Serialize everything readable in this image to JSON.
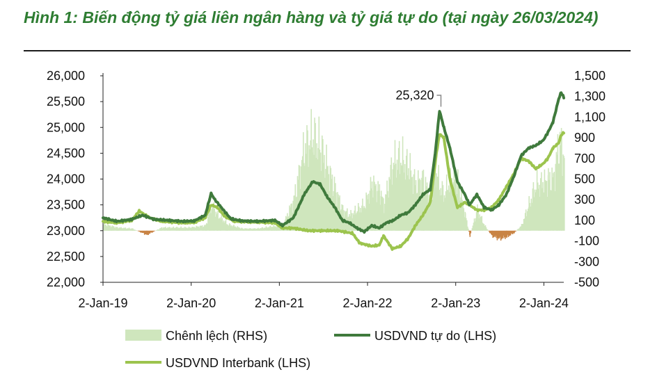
{
  "title": "Hình 1: Biến động tỷ giá liên ngân hàng và tỷ giá tự do (tại ngày 26/03/2024)",
  "colors": {
    "free": "#3f7a3c",
    "interbank": "#9cc44e",
    "spread_pos": "#cfe6bd",
    "spread_neg": "#c98445",
    "title": "#2e7d32"
  },
  "chart_data": {
    "type": "line",
    "title": "Hình 1: Biến động tỷ giá liên ngân hàng và tỷ giá tự do (tại ngày 26/03/2024)",
    "x_ticks": [
      "2-Jan-19",
      "2-Jan-20",
      "2-Jan-21",
      "2-Jan-22",
      "2-Jan-23",
      "2-Jan-24"
    ],
    "xlim": [
      "2019-01-02",
      "2024-03-26"
    ],
    "ylim_left": [
      22000,
      26000
    ],
    "ylim_right": [
      -500,
      1500
    ],
    "left_ticks": [
      "26,000",
      "25,500",
      "25,000",
      "24,500",
      "24,000",
      "23,500",
      "23,000",
      "22,500",
      "22,000"
    ],
    "right_ticks": [
      "1,500",
      "1,300",
      "1,100",
      "900",
      "700",
      "500",
      "300",
      "100",
      "-100",
      "-300",
      "-500"
    ],
    "annotation": {
      "label": "25,320",
      "date": "2022-10-28",
      "value": 25320
    },
    "legend": [
      "Chênh lệch (RHS)",
      "USDVND tự do (LHS)",
      "USDVND Interbank (LHS)"
    ],
    "series": [
      {
        "name": "USDVND tự do (LHS)",
        "axis": "left",
        "points": [
          [
            "2019-01-02",
            23250
          ],
          [
            "2019-03-01",
            23180
          ],
          [
            "2019-05-01",
            23220
          ],
          [
            "2019-06-15",
            23300
          ],
          [
            "2019-08-01",
            23220
          ],
          [
            "2019-10-01",
            23200
          ],
          [
            "2019-12-01",
            23180
          ],
          [
            "2020-01-15",
            23190
          ],
          [
            "2020-03-01",
            23300
          ],
          [
            "2020-03-25",
            23720
          ],
          [
            "2020-04-10",
            23600
          ],
          [
            "2020-05-15",
            23400
          ],
          [
            "2020-06-15",
            23230
          ],
          [
            "2020-08-01",
            23190
          ],
          [
            "2020-10-01",
            23180
          ],
          [
            "2020-12-15",
            23200
          ],
          [
            "2021-01-15",
            23100
          ],
          [
            "2021-03-01",
            23250
          ],
          [
            "2021-04-15",
            23700
          ],
          [
            "2021-05-20",
            23950
          ],
          [
            "2021-06-20",
            23900
          ],
          [
            "2021-07-20",
            23650
          ],
          [
            "2021-08-20",
            23450
          ],
          [
            "2021-09-20",
            23200
          ],
          [
            "2021-10-20",
            23150
          ],
          [
            "2021-11-20",
            23050
          ],
          [
            "2021-12-20",
            22980
          ],
          [
            "2022-01-20",
            23100
          ],
          [
            "2022-02-20",
            23050
          ],
          [
            "2022-03-20",
            23150
          ],
          [
            "2022-04-20",
            23200
          ],
          [
            "2022-05-20",
            23300
          ],
          [
            "2022-06-20",
            23350
          ],
          [
            "2022-07-20",
            23500
          ],
          [
            "2022-08-20",
            23700
          ],
          [
            "2022-09-20",
            23800
          ],
          [
            "2022-10-10",
            24500
          ],
          [
            "2022-10-28",
            25320
          ],
          [
            "2022-11-15",
            25000
          ],
          [
            "2022-12-10",
            24600
          ],
          [
            "2023-01-10",
            23950
          ],
          [
            "2023-02-10",
            23700
          ],
          [
            "2023-03-01",
            23500
          ],
          [
            "2023-04-01",
            23700
          ],
          [
            "2023-05-01",
            23450
          ],
          [
            "2023-06-01",
            23400
          ],
          [
            "2023-07-01",
            23500
          ],
          [
            "2023-08-01",
            23700
          ],
          [
            "2023-09-01",
            24050
          ],
          [
            "2023-10-01",
            24450
          ],
          [
            "2023-11-01",
            24600
          ],
          [
            "2023-12-01",
            24650
          ],
          [
            "2024-01-01",
            24750
          ],
          [
            "2024-01-20",
            24900
          ],
          [
            "2024-02-10",
            25100
          ],
          [
            "2024-03-05",
            25550
          ],
          [
            "2024-03-15",
            25680
          ],
          [
            "2024-03-26",
            25580
          ]
        ]
      },
      {
        "name": "USDVND Interbank (LHS)",
        "axis": "left",
        "points": [
          [
            "2019-01-02",
            23180
          ],
          [
            "2019-03-01",
            23150
          ],
          [
            "2019-05-01",
            23200
          ],
          [
            "2019-06-01",
            23380
          ],
          [
            "2019-07-15",
            23250
          ],
          [
            "2019-09-01",
            23180
          ],
          [
            "2019-12-01",
            23150
          ],
          [
            "2020-01-15",
            23160
          ],
          [
            "2020-03-01",
            23250
          ],
          [
            "2020-03-25",
            23500
          ],
          [
            "2020-04-20",
            23450
          ],
          [
            "2020-05-20",
            23280
          ],
          [
            "2020-07-01",
            23180
          ],
          [
            "2020-09-01",
            23170
          ],
          [
            "2020-11-01",
            23160
          ],
          [
            "2020-12-15",
            23150
          ],
          [
            "2021-01-15",
            23050
          ],
          [
            "2021-03-01",
            23050
          ],
          [
            "2021-05-01",
            23000
          ],
          [
            "2021-07-01",
            23000
          ],
          [
            "2021-09-01",
            23000
          ],
          [
            "2021-11-01",
            22950
          ],
          [
            "2021-12-01",
            22760
          ],
          [
            "2022-01-20",
            22700
          ],
          [
            "2022-02-20",
            22720
          ],
          [
            "2022-03-10",
            22900
          ],
          [
            "2022-04-15",
            22650
          ],
          [
            "2022-05-20",
            22700
          ],
          [
            "2022-06-20",
            22850
          ],
          [
            "2022-07-20",
            23100
          ],
          [
            "2022-08-20",
            23300
          ],
          [
            "2022-09-20",
            23550
          ],
          [
            "2022-10-15",
            24500
          ],
          [
            "2022-10-28",
            24870
          ],
          [
            "2022-11-15",
            24800
          ],
          [
            "2022-12-10",
            24000
          ],
          [
            "2023-01-10",
            23450
          ],
          [
            "2023-02-10",
            23550
          ],
          [
            "2023-03-01",
            23500
          ],
          [
            "2023-04-01",
            23400
          ],
          [
            "2023-05-01",
            23400
          ],
          [
            "2023-06-01",
            23450
          ],
          [
            "2023-07-01",
            23600
          ],
          [
            "2023-08-01",
            23850
          ],
          [
            "2023-09-01",
            24100
          ],
          [
            "2023-10-01",
            24400
          ],
          [
            "2023-11-01",
            24350
          ],
          [
            "2023-12-01",
            24200
          ],
          [
            "2024-01-01",
            24300
          ],
          [
            "2024-01-20",
            24400
          ],
          [
            "2024-02-10",
            24600
          ],
          [
            "2024-03-05",
            24700
          ],
          [
            "2024-03-15",
            24850
          ],
          [
            "2024-03-26",
            24900
          ]
        ]
      },
      {
        "name": "Chênh lệch (RHS)",
        "axis": "right",
        "type": "bar",
        "points": [
          [
            "2019-01-02",
            60
          ],
          [
            "2019-03-01",
            30
          ],
          [
            "2019-05-01",
            20
          ],
          [
            "2019-07-01",
            -40
          ],
          [
            "2019-09-01",
            30
          ],
          [
            "2019-11-01",
            30
          ],
          [
            "2020-01-01",
            30
          ],
          [
            "2020-03-01",
            50
          ],
          [
            "2020-03-25",
            250
          ],
          [
            "2020-04-20",
            150
          ],
          [
            "2020-06-01",
            60
          ],
          [
            "2020-08-01",
            20
          ],
          [
            "2020-10-01",
            20
          ],
          [
            "2020-12-01",
            40
          ],
          [
            "2021-01-15",
            50
          ],
          [
            "2021-03-01",
            300
          ],
          [
            "2021-04-15",
            800
          ],
          [
            "2021-05-20",
            900
          ],
          [
            "2021-06-20",
            800
          ],
          [
            "2021-07-20",
            600
          ],
          [
            "2021-08-20",
            400
          ],
          [
            "2021-09-20",
            200
          ],
          [
            "2021-10-20",
            150
          ],
          [
            "2021-11-20",
            200
          ],
          [
            "2021-12-20",
            250
          ],
          [
            "2022-01-20",
            450
          ],
          [
            "2022-02-20",
            380
          ],
          [
            "2022-03-10",
            250
          ],
          [
            "2022-04-15",
            650
          ],
          [
            "2022-05-20",
            700
          ],
          [
            "2022-06-20",
            600
          ],
          [
            "2022-07-20",
            450
          ],
          [
            "2022-08-20",
            500
          ],
          [
            "2022-09-20",
            300
          ],
          [
            "2022-10-10",
            600
          ],
          [
            "2022-10-28",
            420
          ],
          [
            "2022-11-15",
            350
          ],
          [
            "2022-12-10",
            500
          ],
          [
            "2023-01-10",
            500
          ],
          [
            "2023-02-10",
            150
          ],
          [
            "2023-03-01",
            -50
          ],
          [
            "2023-04-01",
            200
          ],
          [
            "2023-05-01",
            50
          ],
          [
            "2023-06-01",
            -50
          ],
          [
            "2023-07-01",
            -80
          ],
          [
            "2023-08-01",
            -60
          ],
          [
            "2023-09-01",
            -20
          ],
          [
            "2023-10-01",
            50
          ],
          [
            "2023-11-01",
            250
          ],
          [
            "2023-12-01",
            450
          ],
          [
            "2024-01-01",
            450
          ],
          [
            "2024-01-20",
            500
          ],
          [
            "2024-02-10",
            500
          ],
          [
            "2024-03-05",
            850
          ],
          [
            "2024-03-15",
            830
          ],
          [
            "2024-03-26",
            680
          ]
        ]
      }
    ]
  }
}
